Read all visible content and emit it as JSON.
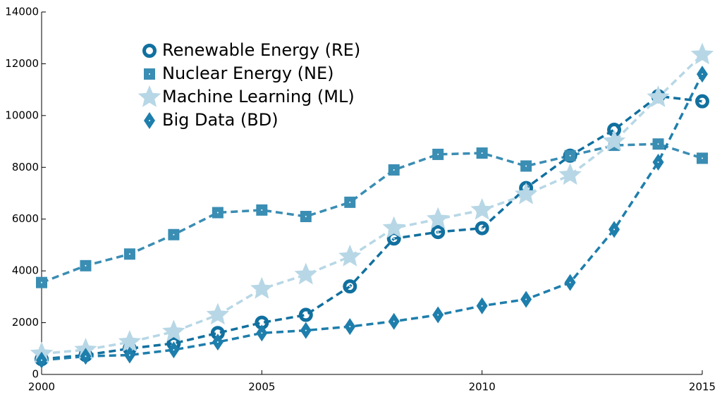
{
  "chart_data": {
    "type": "line",
    "x": [
      2000,
      2001,
      2002,
      2003,
      2004,
      2005,
      2006,
      2007,
      2008,
      2009,
      2010,
      2011,
      2012,
      2013,
      2014,
      2015
    ],
    "series": [
      {
        "name": "Renewable Energy (RE)",
        "color": "#11709f",
        "marker": "circle",
        "values": [
          590,
          750,
          1000,
          1200,
          1600,
          2000,
          2300,
          3400,
          5250,
          5500,
          5650,
          7200,
          8450,
          9450,
          10750,
          10550
        ]
      },
      {
        "name": "Nuclear Energy (NE)",
        "color": "#3a8db3",
        "marker": "square",
        "values": [
          3550,
          4200,
          4650,
          5400,
          6250,
          6350,
          6100,
          6650,
          7900,
          8500,
          8550,
          8050,
          8450,
          8850,
          8900,
          8350
        ]
      },
      {
        "name": "Machine Learning (ML)",
        "color": "#b7d7e6",
        "marker": "star",
        "values": [
          800,
          950,
          1250,
          1650,
          2300,
          3300,
          3850,
          4550,
          5650,
          6000,
          6350,
          6950,
          7700,
          9000,
          10700,
          12350
        ]
      },
      {
        "name": "Big Data (BD)",
        "color": "#1e7eac",
        "marker": "diamond",
        "values": [
          550,
          700,
          750,
          950,
          1250,
          1600,
          1700,
          1850,
          2050,
          2300,
          2650,
          2900,
          3550,
          5600,
          8200,
          11600
        ]
      }
    ],
    "xlim": [
      2000,
      2015
    ],
    "xticks": [
      2000,
      2005,
      2010,
      2015
    ],
    "ylim": [
      0,
      14000
    ],
    "yticks": [
      0,
      2000,
      4000,
      6000,
      8000,
      10000,
      12000,
      14000
    ],
    "grid": false,
    "legend": "upper left"
  }
}
